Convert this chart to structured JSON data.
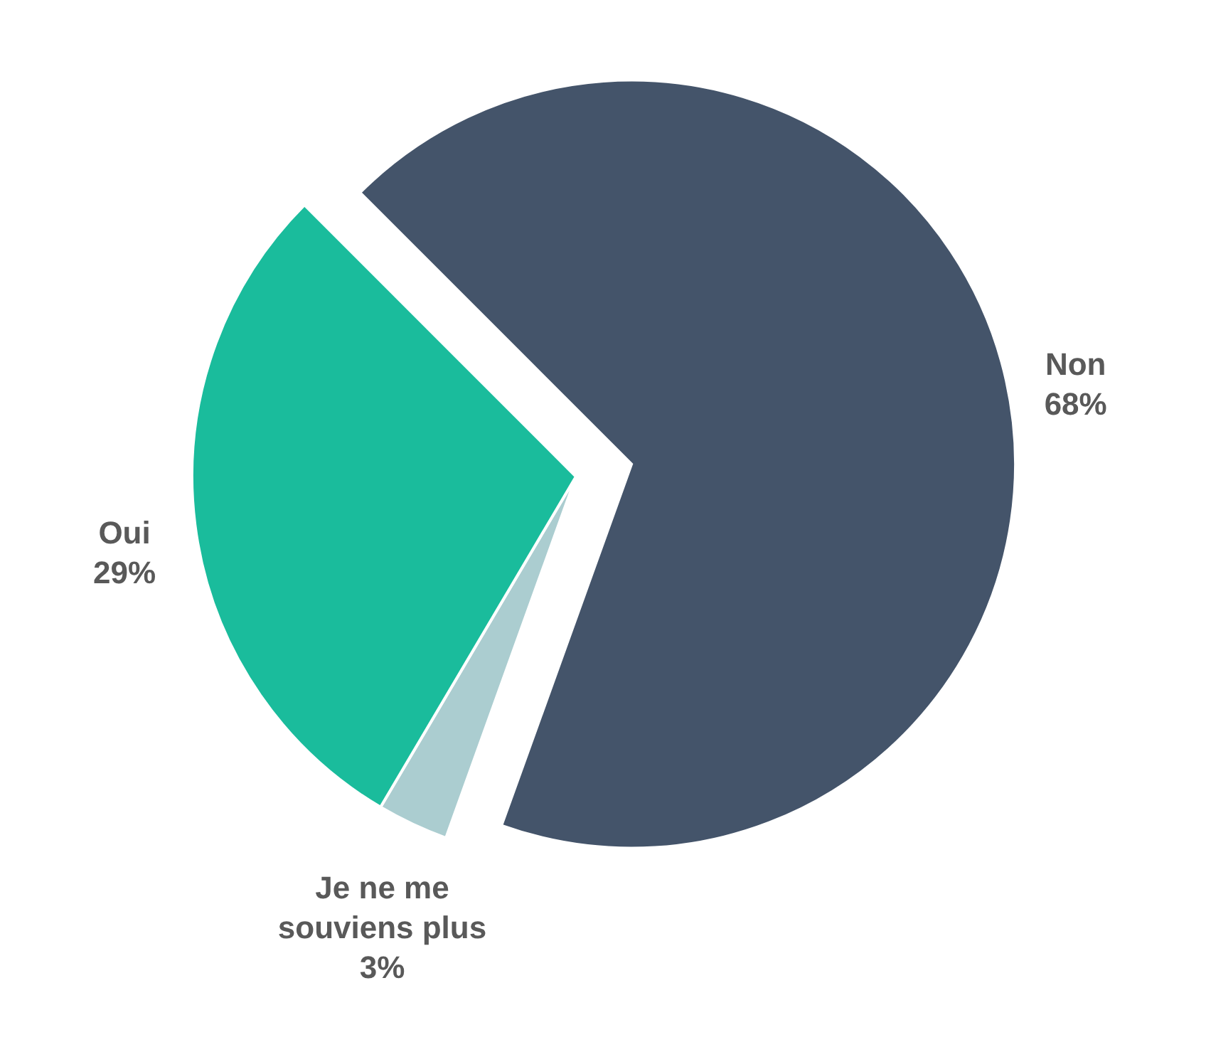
{
  "chart_data": {
    "type": "pie",
    "categories": [
      "Non",
      "Je ne me souviens plus",
      "Oui"
    ],
    "values": [
      68,
      3,
      29
    ],
    "value_labels": [
      "68%",
      "3%",
      "29%"
    ],
    "colors": [
      "#44546a",
      "#abcdd0",
      "#1abc9c"
    ],
    "legend": false
  }
}
